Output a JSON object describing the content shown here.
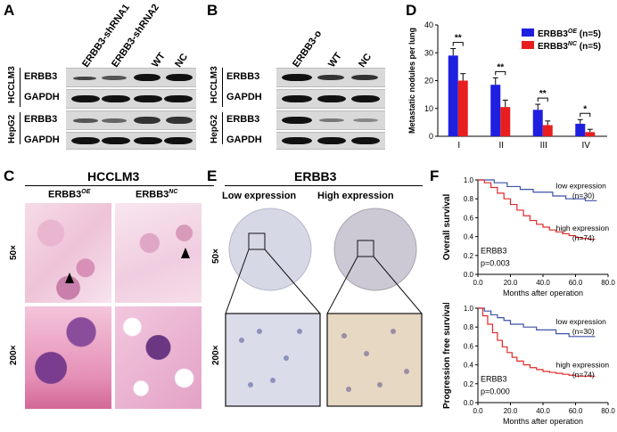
{
  "panels": {
    "A": {
      "letter": "A",
      "lanes": [
        "ERBB3-shRNA1",
        "ERBB3-shRNA2",
        "WT",
        "NC"
      ],
      "cell_lines": [
        "HCCLM3",
        "HepG2"
      ],
      "proteins": [
        "ERBB3",
        "GAPDH"
      ]
    },
    "B": {
      "letter": "B",
      "lanes": [
        "ERBB3-o",
        "WT",
        "NC"
      ],
      "cell_lines": [
        "HCCLM3",
        "HepG2"
      ],
      "proteins": [
        "ERBB3",
        "GAPDH"
      ]
    },
    "C": {
      "letter": "C",
      "header": "HCCLM3",
      "col1_main": "ERBB3",
      "col1_sup": "OE",
      "col2_main": "ERBB3",
      "col2_sup": "NC",
      "mag1": "50×",
      "mag2": "200×"
    },
    "D": {
      "letter": "D"
    },
    "E": {
      "letter": "E",
      "header": "ERBB3",
      "col1": "Low expression",
      "col2": "High expression",
      "mag1": "50×",
      "mag2": "200×"
    },
    "F": {
      "letter": "F"
    }
  },
  "chart_data": [
    {
      "type": "bar",
      "panel": "D",
      "ylabel": "Metastatic nodules per lung",
      "categories": [
        "I",
        "II",
        "III",
        "IV"
      ],
      "ylim": [
        0,
        40
      ],
      "yticks": [
        0,
        10,
        20,
        30,
        40
      ],
      "series": [
        {
          "name": "ERBB3",
          "sup": "OE",
          "count": "(n=5)",
          "color": "#1f1fe0",
          "values": [
            29,
            18.5,
            9.5,
            4.5
          ],
          "errors": [
            2.5,
            2.5,
            2,
            1.5
          ]
        },
        {
          "name": "ERBB3",
          "sup": "NC",
          "count": "(n=5)",
          "color": "#e81e1e",
          "values": [
            20,
            10.5,
            4,
            1.5
          ],
          "errors": [
            2.5,
            2.5,
            1.5,
            1
          ]
        }
      ],
      "significance": [
        "**",
        "**",
        "**",
        "*"
      ]
    },
    {
      "type": "line",
      "panel": "F-top",
      "ylabel": "Overall survival",
      "xlabel": "Months after operation",
      "xticks": [
        "0.0",
        "20.0",
        "40.0",
        "60.0",
        "80.0"
      ],
      "yticks": [
        "0.0",
        "0.2",
        "0.4",
        "0.6",
        "0.8",
        "1.0"
      ],
      "xlim": [
        0,
        80
      ],
      "ylim": [
        0,
        1
      ],
      "series": [
        {
          "name": "low expression",
          "n": "(n=30)",
          "color": "#3c52a8",
          "x": [
            0,
            5,
            10,
            14,
            18,
            22,
            26,
            30,
            34,
            38,
            42,
            46,
            50,
            54,
            58,
            62,
            66,
            70,
            73
          ],
          "y": [
            1.0,
            1.0,
            0.97,
            0.97,
            0.93,
            0.93,
            0.9,
            0.9,
            0.87,
            0.87,
            0.87,
            0.83,
            0.83,
            0.8,
            0.8,
            0.8,
            0.78,
            0.78,
            0.78
          ]
        },
        {
          "name": "high expression",
          "n": "(n=74)",
          "color": "#e02a2a",
          "x": [
            0,
            4,
            8,
            12,
            16,
            20,
            24,
            28,
            32,
            36,
            40,
            44,
            48,
            52,
            56,
            60,
            64,
            68,
            72
          ],
          "y": [
            1.0,
            0.97,
            0.92,
            0.86,
            0.8,
            0.74,
            0.68,
            0.62,
            0.57,
            0.53,
            0.5,
            0.47,
            0.45,
            0.43,
            0.41,
            0.39,
            0.38,
            0.37,
            0.37
          ]
        }
      ],
      "annotation": [
        "ERBB3",
        "p=0.003"
      ]
    },
    {
      "type": "line",
      "panel": "F-bottom",
      "ylabel": "Progression free survival",
      "xlabel": "Months after operation",
      "xticks": [
        "0.0",
        "20.0",
        "40.0",
        "60.0",
        "80.0"
      ],
      "yticks": [
        "0.0",
        "0.2",
        "0.4",
        "0.6",
        "0.8",
        "1.0"
      ],
      "xlim": [
        0,
        80
      ],
      "ylim": [
        0,
        1
      ],
      "series": [
        {
          "name": "low expression",
          "n": "(n=30)",
          "color": "#3c52a8",
          "x": [
            0,
            4,
            8,
            12,
            16,
            20,
            24,
            28,
            32,
            36,
            40,
            44,
            48,
            52,
            56,
            60,
            64,
            68,
            72
          ],
          "y": [
            1.0,
            0.97,
            0.93,
            0.9,
            0.87,
            0.83,
            0.83,
            0.8,
            0.8,
            0.77,
            0.77,
            0.77,
            0.73,
            0.73,
            0.7,
            0.7,
            0.7,
            0.7,
            0.7
          ]
        },
        {
          "name": "high expression",
          "n": "(n=74)",
          "color": "#e02a2a",
          "x": [
            0,
            3,
            6,
            9,
            12,
            15,
            18,
            21,
            24,
            28,
            32,
            36,
            40,
            44,
            48,
            52,
            56,
            60,
            64,
            68,
            72
          ],
          "y": [
            1.0,
            0.92,
            0.83,
            0.74,
            0.66,
            0.59,
            0.53,
            0.48,
            0.44,
            0.4,
            0.37,
            0.35,
            0.33,
            0.32,
            0.31,
            0.3,
            0.29,
            0.28,
            0.28,
            0.28,
            0.28
          ]
        }
      ],
      "annotation": [
        "ERBB3",
        "p=0.000"
      ]
    }
  ]
}
